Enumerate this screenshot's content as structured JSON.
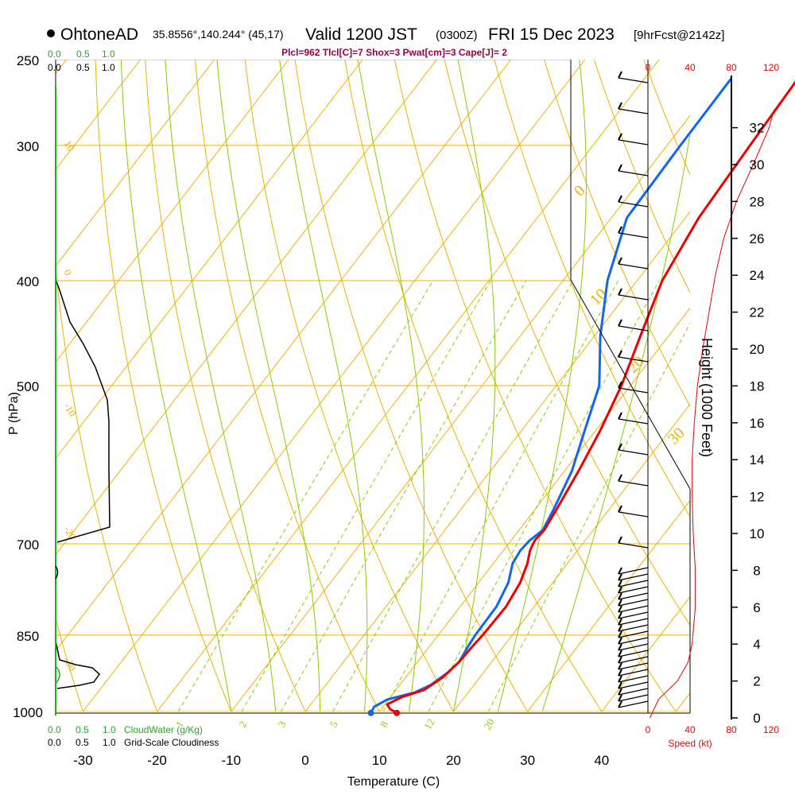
{
  "header": {
    "station": "OhtoneAD",
    "coords": "35.8556°,140.244° (45,17)",
    "valid": "Valid 1200 JST",
    "utc": "(0300Z)",
    "date": "FRI 15 Dec 2023",
    "fcst": "[9hrFcst@2142z]"
  },
  "indices": "Plcl=962 Tlcl[C]=7 Shox=3 Pwat[cm]=3 Cape[J]= 2",
  "colors": {
    "isobar": "#f0b000",
    "dry_adiabat": "#f0b000",
    "moist_adiabat": "#88cc00",
    "mixing_ratio": "#88cc00",
    "temperature": "#ee0000",
    "dewpoint": "#1166ee",
    "cloudwater": "#22aa22",
    "speed": "#ee0000"
  },
  "chart_data": {
    "type": "skew-t",
    "xlabel": "Temperature (C)",
    "ylabel": "P (hPa)",
    "right_axis_label": "Height (1000 Feet)",
    "x_ticks": [
      -30,
      -20,
      -10,
      0,
      10,
      20,
      30,
      40
    ],
    "pressure_ticks": [
      250,
      300,
      400,
      500,
      700,
      850,
      1000
    ],
    "height_ticks": [
      0,
      2,
      4,
      6,
      8,
      10,
      12,
      14,
      16,
      18,
      20,
      22,
      24,
      26,
      28,
      30,
      32
    ],
    "top_left_scale_green": [
      "0.0",
      "0.5",
      "1.0"
    ],
    "top_left_scale_black": [
      "0.0",
      "0.5",
      "1.0"
    ],
    "bottom_left_scale_green": [
      "0.0",
      "0.5",
      "1.0"
    ],
    "bottom_left_scale_black": [
      "0.0",
      "0.5",
      "1.0"
    ],
    "cloudwater_label": "CloudWater (g/Kg)",
    "cloudiness_label": "Grid-Scale Cloudiness",
    "speed_ticks": [
      "0",
      "40",
      "80",
      "120"
    ],
    "speed_label": "Speed (kt)",
    "dry_adiabat_labels": [
      "10",
      "0",
      "-10",
      "-20",
      "-30"
    ],
    "moist_adiabat_labels": [
      "0",
      "10",
      "20",
      "30"
    ],
    "mixing_ratio_labels": [
      "1",
      "2",
      "3",
      "5",
      "8",
      "12",
      "20"
    ],
    "temperature": [
      {
        "p": 1003,
        "t": 12.5
      },
      {
        "p": 995,
        "t": 11.2
      },
      {
        "p": 985,
        "t": 10.3
      },
      {
        "p": 970,
        "t": 11.5
      },
      {
        "p": 955,
        "t": 13.8
      },
      {
        "p": 930,
        "t": 15.0
      },
      {
        "p": 900,
        "t": 15.6
      },
      {
        "p": 870,
        "t": 15.8
      },
      {
        "p": 850,
        "t": 16.0
      },
      {
        "p": 800,
        "t": 16.2
      },
      {
        "p": 760,
        "t": 15.6
      },
      {
        "p": 730,
        "t": 14.6
      },
      {
        "p": 710,
        "t": 13.6
      },
      {
        "p": 695,
        "t": 13.2
      },
      {
        "p": 680,
        "t": 13.4
      },
      {
        "p": 650,
        "t": 12.9
      },
      {
        "p": 600,
        "t": 11.9
      },
      {
        "p": 550,
        "t": 10.6
      },
      {
        "p": 500,
        "t": 8.8
      },
      {
        "p": 450,
        "t": 6.2
      },
      {
        "p": 400,
        "t": 3.4
      },
      {
        "p": 350,
        "t": 1.8
      },
      {
        "p": 300,
        "t": 1.2
      },
      {
        "p": 260,
        "t": 0.7
      }
    ],
    "dewpoint": [
      {
        "p": 1003,
        "t": 9.0
      },
      {
        "p": 990,
        "t": 8.8
      },
      {
        "p": 975,
        "t": 9.8
      },
      {
        "p": 960,
        "t": 12.8
      },
      {
        "p": 945,
        "t": 14.2
      },
      {
        "p": 920,
        "t": 15.2
      },
      {
        "p": 900,
        "t": 15.6
      },
      {
        "p": 870,
        "t": 15.2
      },
      {
        "p": 850,
        "t": 15.0
      },
      {
        "p": 800,
        "t": 14.9
      },
      {
        "p": 760,
        "t": 14.0
      },
      {
        "p": 730,
        "t": 12.6
      },
      {
        "p": 710,
        "t": 12.3
      },
      {
        "p": 695,
        "t": 12.5
      },
      {
        "p": 680,
        "t": 13.2
      },
      {
        "p": 650,
        "t": 12.5
      },
      {
        "p": 600,
        "t": 11.0
      },
      {
        "p": 550,
        "t": 8.5
      },
      {
        "p": 500,
        "t": 5.8
      },
      {
        "p": 450,
        "t": 0.8
      },
      {
        "p": 400,
        "t": -4.0
      },
      {
        "p": 350,
        "t": -7.9
      },
      {
        "p": 300,
        "t": -8.2
      },
      {
        "p": 260,
        "t": -8.3
      }
    ],
    "wind_speed_profile": [
      {
        "h": 0,
        "s": 2
      },
      {
        "h": 1,
        "s": 10
      },
      {
        "h": 2,
        "s": 28
      },
      {
        "h": 3,
        "s": 38
      },
      {
        "h": 4,
        "s": 42
      },
      {
        "h": 6,
        "s": 45
      },
      {
        "h": 8,
        "s": 45
      },
      {
        "h": 10,
        "s": 43
      },
      {
        "h": 12,
        "s": 42
      },
      {
        "h": 14,
        "s": 42
      },
      {
        "h": 16,
        "s": 44
      },
      {
        "h": 18,
        "s": 47
      },
      {
        "h": 20,
        "s": 52
      },
      {
        "h": 22,
        "s": 58
      },
      {
        "h": 24,
        "s": 64
      },
      {
        "h": 26,
        "s": 72
      },
      {
        "h": 28,
        "s": 84
      },
      {
        "h": 30,
        "s": 100
      },
      {
        "h": 32,
        "s": 115
      },
      {
        "h": 33,
        "s": 120
      }
    ]
  }
}
